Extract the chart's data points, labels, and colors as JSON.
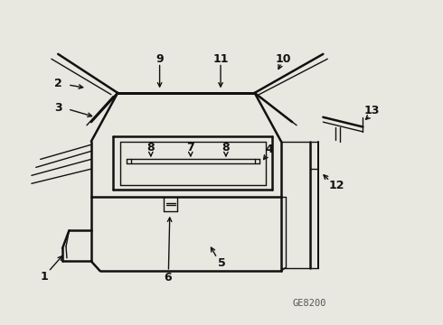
{
  "bg_color": "#e8e8e0",
  "line_color": "#111111",
  "lw": 1.8,
  "thin_lw": 1.0,
  "fig_width": 4.9,
  "fig_height": 3.6,
  "dpi": 100,
  "watermark": "GE8200"
}
